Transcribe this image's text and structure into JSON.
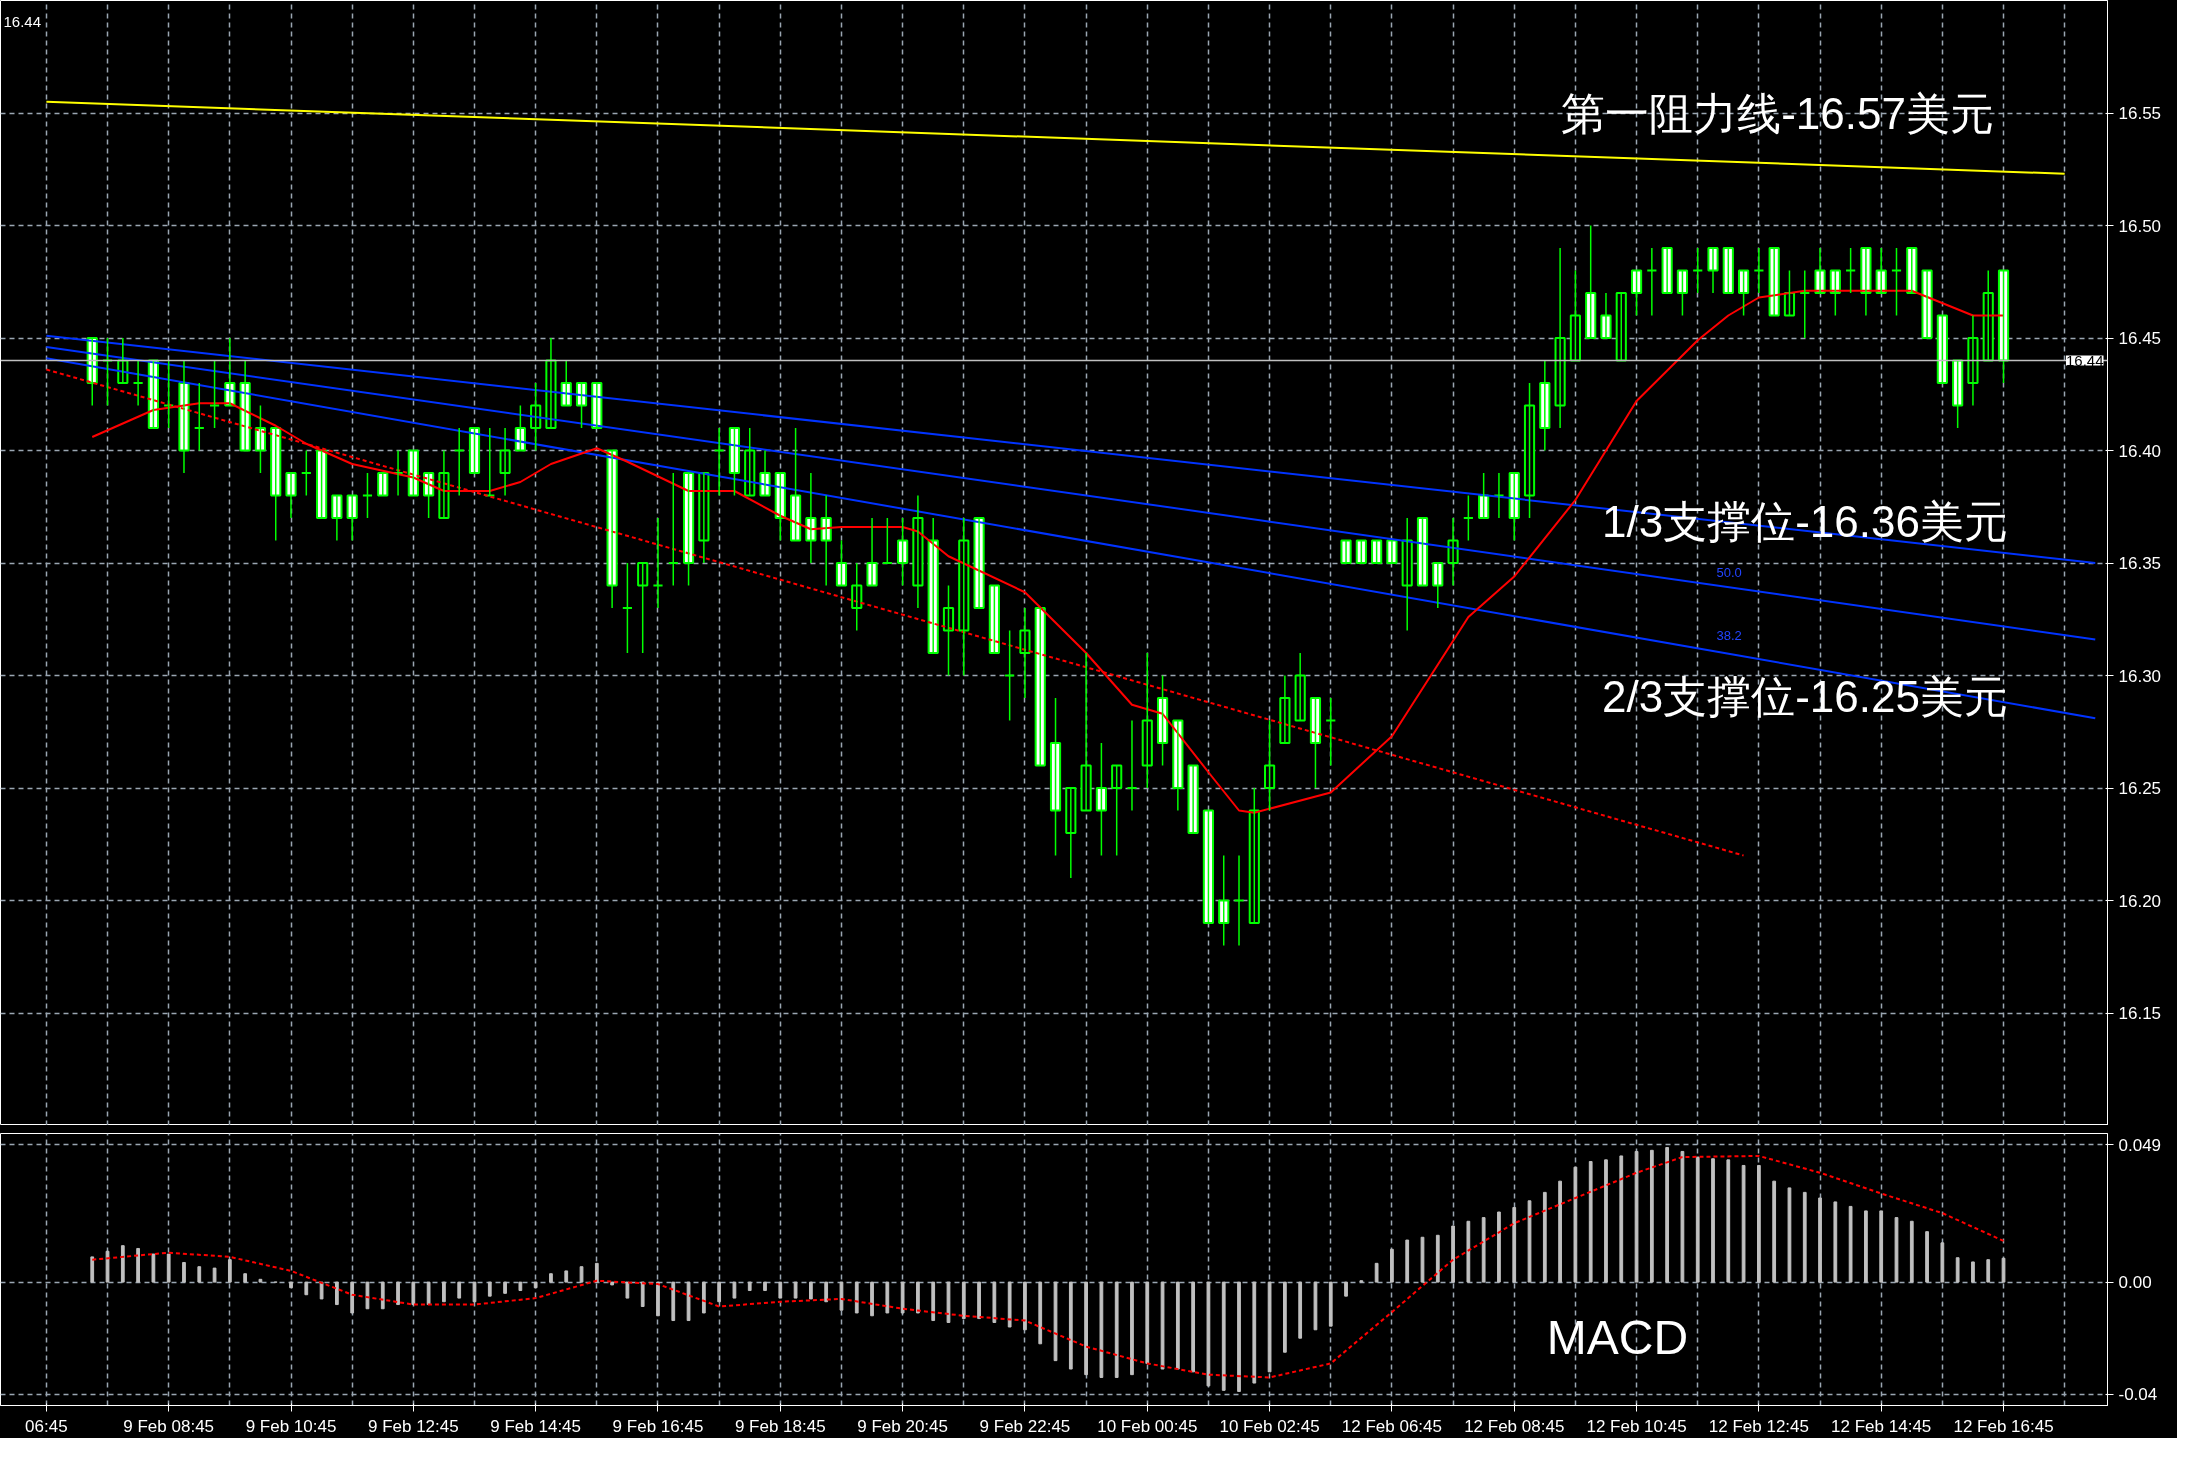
{
  "chart_data": [
    {
      "type": "candlestick",
      "color": "#00ff00",
      "categories": [
        "06:45",
        null,
        null,
        null,
        null,
        null,
        null,
        null,
        "9 Feb 08:45",
        null,
        null,
        null,
        null,
        null,
        null,
        null,
        "9 Feb 10:45",
        null,
        null,
        null,
        null,
        null,
        null,
        null,
        "9 Feb 12:45",
        null,
        null,
        null,
        null,
        null,
        null,
        null,
        "9 Feb 14:45",
        null,
        null,
        null,
        null,
        null,
        null,
        null,
        "9 Feb 16:45",
        null,
        null,
        null,
        null,
        null,
        null,
        null,
        "9 Feb 18:45",
        null,
        null,
        null,
        null,
        null,
        null,
        null,
        "9 Feb 20:45",
        null,
        null,
        null,
        null,
        null,
        null,
        null,
        "9 Feb 22:45",
        null,
        null,
        null,
        null,
        null,
        null,
        null,
        "10 Feb 00:45",
        null,
        null,
        null,
        null,
        null,
        null,
        null,
        "10 Feb 02:45",
        null,
        null,
        null,
        null,
        null,
        null,
        null,
        "12 Feb 06:45",
        null,
        null,
        null,
        null,
        null,
        null,
        null,
        "12 Feb 08:45",
        null,
        null,
        null,
        null,
        null,
        null,
        null,
        "12 Feb 10:45",
        null,
        null,
        null,
        null,
        null,
        null,
        null,
        "12 Feb 12:45",
        null,
        null,
        null,
        null,
        null,
        null,
        null,
        "12 Feb 14:45",
        null,
        null,
        null,
        null,
        null,
        null,
        null,
        "12 Feb 16:45",
        null,
        null,
        null,
        null,
        null,
        null
      ],
      "ohlc": [
        null,
        null,
        null,
        [
          16.45,
          16.45,
          16.42,
          16.43
        ],
        [
          16.44,
          16.45,
          16.42,
          16.44
        ],
        [
          16.43,
          16.45,
          16.43,
          16.44
        ],
        [
          16.43,
          16.44,
          16.42,
          16.43
        ],
        [
          16.44,
          16.44,
          16.41,
          16.41
        ],
        [
          16.42,
          16.44,
          16.41,
          16.42
        ],
        [
          16.43,
          16.44,
          16.39,
          16.4
        ],
        [
          16.41,
          16.43,
          16.4,
          16.41
        ],
        [
          16.42,
          16.44,
          16.41,
          16.42
        ],
        [
          16.43,
          16.45,
          16.42,
          16.42
        ],
        [
          16.43,
          16.44,
          16.4,
          16.4
        ],
        [
          16.41,
          16.42,
          16.39,
          16.4
        ],
        [
          16.41,
          16.41,
          16.36,
          16.38
        ],
        [
          16.39,
          16.39,
          16.37,
          16.38
        ],
        [
          16.39,
          16.4,
          16.38,
          16.39
        ],
        [
          16.4,
          16.4,
          16.37,
          16.37
        ],
        [
          16.38,
          16.38,
          16.36,
          16.37
        ],
        [
          16.38,
          16.38,
          16.36,
          16.37
        ],
        [
          16.38,
          16.39,
          16.37,
          16.38
        ],
        [
          16.39,
          16.39,
          16.38,
          16.38
        ],
        [
          16.39,
          16.4,
          16.38,
          16.39
        ],
        [
          16.4,
          16.4,
          16.38,
          16.38
        ],
        [
          16.39,
          16.39,
          16.37,
          16.38
        ],
        [
          16.37,
          16.4,
          16.37,
          16.39
        ],
        [
          16.4,
          16.41,
          16.38,
          16.4
        ],
        [
          16.41,
          16.41,
          16.39,
          16.39
        ],
        [
          16.38,
          16.41,
          16.38,
          16.38
        ],
        [
          16.39,
          16.41,
          16.38,
          16.4
        ],
        [
          16.41,
          16.42,
          16.4,
          16.4
        ],
        [
          16.41,
          16.43,
          16.4,
          16.42
        ],
        [
          16.41,
          16.45,
          16.41,
          16.44
        ],
        [
          16.43,
          16.44,
          16.42,
          16.42
        ],
        [
          16.43,
          16.43,
          16.41,
          16.42
        ],
        [
          16.43,
          16.43,
          16.41,
          16.41
        ],
        [
          16.4,
          16.4,
          16.33,
          16.34
        ],
        [
          16.33,
          16.35,
          16.31,
          16.33
        ],
        [
          16.34,
          16.35,
          16.31,
          16.35
        ],
        [
          16.34,
          16.37,
          16.33,
          16.34
        ],
        [
          16.35,
          16.39,
          16.34,
          16.35
        ],
        [
          16.39,
          16.39,
          16.34,
          16.35
        ],
        [
          16.36,
          16.39,
          16.35,
          16.39
        ],
        [
          16.4,
          16.41,
          16.38,
          16.4
        ],
        [
          16.41,
          16.41,
          16.38,
          16.39
        ],
        [
          16.38,
          16.41,
          16.38,
          16.4
        ],
        [
          16.39,
          16.4,
          16.38,
          16.38
        ],
        [
          16.39,
          16.39,
          16.36,
          16.37
        ],
        [
          16.38,
          16.41,
          16.36,
          16.36
        ],
        [
          16.37,
          16.39,
          16.35,
          16.36
        ],
        [
          16.37,
          16.38,
          16.34,
          16.36
        ],
        [
          16.35,
          16.36,
          16.34,
          16.34
        ],
        [
          16.33,
          16.35,
          16.32,
          16.34
        ],
        [
          16.35,
          16.37,
          16.34,
          16.34
        ],
        [
          16.35,
          16.37,
          16.35,
          16.35
        ],
        [
          16.36,
          16.37,
          16.34,
          16.35
        ],
        [
          16.34,
          16.38,
          16.33,
          16.37
        ],
        [
          16.36,
          16.37,
          16.31,
          16.31
        ],
        [
          16.32,
          16.34,
          16.3,
          16.33
        ],
        [
          16.32,
          16.37,
          16.3,
          16.36
        ],
        [
          16.37,
          16.37,
          16.33,
          16.33
        ],
        [
          16.34,
          16.34,
          16.31,
          16.31
        ],
        [
          16.3,
          16.32,
          16.28,
          16.3
        ],
        [
          16.31,
          16.33,
          16.29,
          16.32
        ],
        [
          16.33,
          16.33,
          16.26,
          16.26
        ],
        [
          16.27,
          16.29,
          16.22,
          16.24
        ],
        [
          16.23,
          16.25,
          16.21,
          16.25
        ],
        [
          16.24,
          16.31,
          16.24,
          16.26
        ],
        [
          16.25,
          16.27,
          16.22,
          16.24
        ],
        [
          16.25,
          16.26,
          16.22,
          16.26
        ],
        [
          16.25,
          16.28,
          16.24,
          16.25
        ],
        [
          16.26,
          16.31,
          16.25,
          16.28
        ],
        [
          16.29,
          16.3,
          16.26,
          16.27
        ],
        [
          16.28,
          16.28,
          16.24,
          16.25
        ],
        [
          16.26,
          16.26,
          16.23,
          16.23
        ],
        [
          16.24,
          16.24,
          16.19,
          16.19
        ],
        [
          16.2,
          16.22,
          16.18,
          16.19
        ],
        [
          16.2,
          16.22,
          16.18,
          16.2
        ],
        [
          16.19,
          16.25,
          16.19,
          16.24
        ],
        [
          16.25,
          16.28,
          16.24,
          16.26
        ],
        [
          16.27,
          16.3,
          16.27,
          16.29
        ],
        [
          16.28,
          16.31,
          16.28,
          16.3
        ],
        [
          16.29,
          16.29,
          16.25,
          16.27
        ],
        [
          16.28,
          16.29,
          16.26,
          16.28
        ],
        [
          16.36,
          16.36,
          16.35,
          16.35
        ],
        [
          16.36,
          16.36,
          16.35,
          16.35
        ],
        [
          16.36,
          16.36,
          16.35,
          16.35
        ],
        [
          16.36,
          16.36,
          16.35,
          16.35
        ],
        [
          16.34,
          16.37,
          16.32,
          16.36
        ],
        [
          16.37,
          16.37,
          16.34,
          16.34
        ],
        [
          16.35,
          16.35,
          16.33,
          16.34
        ],
        [
          16.35,
          16.37,
          16.34,
          16.36
        ],
        [
          16.37,
          16.38,
          16.36,
          16.37
        ],
        [
          16.38,
          16.39,
          16.37,
          16.37
        ],
        [
          16.38,
          16.39,
          16.37,
          16.38
        ],
        [
          16.39,
          16.39,
          16.36,
          16.37
        ],
        [
          16.38,
          16.43,
          16.37,
          16.42
        ],
        [
          16.43,
          16.44,
          16.4,
          16.41
        ],
        [
          16.42,
          16.49,
          16.41,
          16.45
        ],
        [
          16.44,
          16.48,
          16.44,
          16.46
        ],
        [
          16.47,
          16.5,
          16.45,
          16.45
        ],
        [
          16.46,
          16.47,
          16.45,
          16.45
        ],
        [
          16.44,
          16.47,
          16.44,
          16.47
        ],
        [
          16.48,
          16.48,
          16.46,
          16.47
        ],
        [
          16.48,
          16.49,
          16.46,
          16.48
        ],
        [
          16.49,
          16.49,
          16.47,
          16.47
        ],
        [
          16.48,
          16.48,
          16.46,
          16.47
        ],
        [
          16.48,
          16.49,
          16.47,
          16.48
        ],
        [
          16.49,
          16.49,
          16.47,
          16.48
        ],
        [
          16.49,
          16.49,
          16.47,
          16.47
        ],
        [
          16.48,
          16.48,
          16.46,
          16.47
        ],
        [
          16.48,
          16.49,
          16.47,
          16.48
        ],
        [
          16.49,
          16.49,
          16.46,
          16.46
        ],
        [
          16.46,
          16.48,
          16.46,
          16.47
        ],
        [
          16.47,
          16.48,
          16.45,
          16.47
        ],
        [
          16.48,
          16.49,
          16.47,
          16.47
        ],
        [
          16.48,
          16.48,
          16.46,
          16.47
        ],
        [
          16.48,
          16.49,
          16.47,
          16.48
        ],
        [
          16.49,
          16.49,
          16.46,
          16.47
        ],
        [
          16.48,
          16.49,
          16.47,
          16.47
        ],
        [
          16.48,
          16.49,
          16.46,
          16.48
        ],
        [
          16.49,
          16.49,
          16.47,
          16.47
        ],
        [
          16.48,
          16.48,
          16.45,
          16.45
        ],
        [
          16.46,
          16.46,
          16.43,
          16.43
        ],
        [
          16.44,
          16.44,
          16.41,
          16.42
        ],
        [
          16.43,
          16.46,
          16.42,
          16.45
        ],
        [
          16.44,
          16.48,
          16.44,
          16.47
        ],
        [
          16.48,
          16.48,
          16.43,
          16.44
        ],
        null,
        null,
        null,
        null,
        null,
        null
      ],
      "series": [
        {
          "type": "line",
          "color": "#ffff00",
          "values": [
            16.555,
            null,
            null,
            null,
            null,
            null,
            null,
            null,
            null,
            null,
            null,
            null,
            null,
            null,
            null,
            null,
            null,
            null,
            null,
            null,
            null,
            null,
            null,
            null,
            null,
            null,
            null,
            null,
            null,
            null,
            null,
            null,
            null,
            null,
            null,
            null,
            null,
            null,
            null,
            null,
            null,
            null,
            null,
            null,
            null,
            null,
            null,
            null,
            null,
            null,
            null,
            null,
            null,
            null,
            null,
            null,
            null,
            null,
            null,
            null,
            null,
            null,
            null,
            null,
            null,
            null,
            null,
            null,
            null,
            null,
            null,
            null,
            null,
            null,
            null,
            null,
            null,
            null,
            null,
            null,
            null,
            null,
            null,
            null,
            null,
            null,
            null,
            null,
            null,
            null,
            null,
            null,
            null,
            null,
            null,
            null,
            null,
            null,
            null,
            null,
            null,
            null,
            null,
            null,
            null,
            null,
            null,
            null,
            null,
            null,
            null,
            null,
            null,
            null,
            null,
            null,
            null,
            null,
            null,
            null,
            null,
            null,
            null,
            null,
            null,
            null,
            null,
            null,
            null,
            null,
            null,
            null,
            16.523,
            null,
            null
          ]
        },
        {
          "type": "line",
          "color": "#0033ff",
          "values": [
            16.451,
            null,
            null,
            null,
            null,
            null,
            null,
            null,
            null,
            null,
            null,
            null,
            null,
            null,
            null,
            null,
            null,
            null,
            null,
            null,
            null,
            null,
            null,
            null,
            null,
            null,
            null,
            null,
            null,
            null,
            null,
            null,
            null,
            null,
            null,
            null,
            null,
            null,
            null,
            null,
            null,
            null,
            null,
            null,
            null,
            null,
            null,
            null,
            null,
            null,
            null,
            null,
            null,
            null,
            null,
            null,
            null,
            null,
            null,
            null,
            null,
            null,
            null,
            null,
            null,
            null,
            null,
            null,
            null,
            null,
            null,
            null,
            null,
            null,
            null,
            null,
            null,
            null,
            null,
            null,
            null,
            null,
            null,
            null,
            null,
            null,
            null,
            null,
            null,
            null,
            null,
            null,
            null,
            null,
            null,
            null,
            null,
            null,
            null,
            null,
            null,
            null,
            null,
            null,
            null,
            null,
            null,
            null,
            null,
            null,
            null,
            null,
            null,
            null,
            null,
            null,
            null,
            null,
            null,
            null,
            null,
            null,
            null,
            null,
            null,
            null,
            null,
            null,
            null,
            null,
            null,
            null,
            null,
            null,
            16.35
          ]
        },
        {
          "type": "line",
          "color": "#0033ff",
          "values": [
            16.446,
            null,
            null,
            null,
            null,
            null,
            null,
            null,
            null,
            null,
            null,
            null,
            null,
            null,
            null,
            null,
            null,
            null,
            null,
            null,
            null,
            null,
            null,
            null,
            null,
            null,
            null,
            null,
            null,
            null,
            null,
            null,
            null,
            null,
            null,
            null,
            null,
            null,
            null,
            null,
            null,
            null,
            null,
            null,
            null,
            null,
            null,
            null,
            null,
            null,
            null,
            null,
            null,
            null,
            null,
            null,
            null,
            null,
            null,
            null,
            null,
            null,
            null,
            null,
            null,
            null,
            null,
            null,
            null,
            null,
            null,
            null,
            null,
            null,
            null,
            null,
            null,
            null,
            null,
            null,
            null,
            null,
            null,
            null,
            null,
            null,
            null,
            null,
            null,
            null,
            null,
            null,
            null,
            null,
            null,
            null,
            null,
            null,
            null,
            null,
            null,
            null,
            null,
            null,
            null,
            null,
            null,
            null,
            null,
            null,
            null,
            null,
            null,
            null,
            null,
            null,
            null,
            null,
            null,
            null,
            null,
            null,
            null,
            null,
            null,
            null,
            null,
            null,
            null,
            null,
            null,
            null,
            null,
            null,
            16.316
          ]
        },
        {
          "type": "line",
          "color": "#0033ff",
          "values": [
            16.441,
            null,
            null,
            null,
            null,
            null,
            null,
            null,
            null,
            null,
            null,
            null,
            null,
            null,
            null,
            null,
            null,
            null,
            null,
            null,
            null,
            null,
            null,
            null,
            null,
            null,
            null,
            null,
            null,
            null,
            null,
            null,
            null,
            null,
            null,
            null,
            null,
            null,
            null,
            null,
            null,
            null,
            null,
            null,
            null,
            null,
            null,
            null,
            null,
            null,
            null,
            null,
            null,
            null,
            null,
            null,
            null,
            null,
            null,
            null,
            null,
            null,
            null,
            null,
            null,
            null,
            null,
            null,
            null,
            null,
            null,
            null,
            null,
            null,
            null,
            null,
            null,
            null,
            null,
            null,
            null,
            null,
            null,
            null,
            null,
            null,
            null,
            null,
            null,
            null,
            null,
            null,
            null,
            null,
            null,
            null,
            null,
            null,
            null,
            null,
            null,
            null,
            null,
            null,
            null,
            null,
            null,
            null,
            null,
            null,
            null,
            null,
            null,
            null,
            null,
            null,
            null,
            null,
            null,
            null,
            null,
            null,
            null,
            null,
            null,
            null,
            null,
            null,
            null,
            null,
            null,
            null,
            null,
            null,
            16.281
          ]
        },
        {
          "type": "line",
          "color": "#ff0000",
          "line_style": "dashed",
          "values": [
            16.436,
            null,
            null,
            null,
            null,
            null,
            null,
            null,
            null,
            null,
            null,
            null,
            null,
            null,
            null,
            null,
            null,
            null,
            null,
            null,
            null,
            null,
            null,
            null,
            null,
            null,
            null,
            null,
            null,
            null,
            null,
            null,
            null,
            null,
            null,
            null,
            null,
            null,
            null,
            null,
            null,
            null,
            null,
            null,
            null,
            null,
            null,
            null,
            null,
            null,
            null,
            null,
            null,
            null,
            null,
            null,
            null,
            null,
            null,
            null,
            null,
            null,
            null,
            null,
            null,
            null,
            null,
            null,
            null,
            null,
            null,
            null,
            null,
            null,
            null,
            null,
            null,
            null,
            null,
            null,
            null,
            null,
            null,
            null,
            null,
            null,
            null,
            null,
            null,
            null,
            null,
            null,
            null,
            null,
            null,
            null,
            null,
            null,
            null,
            null,
            null,
            null,
            null,
            null,
            null,
            null,
            null,
            null,
            null,
            null,
            null,
            16.22,
            null,
            null,
            null,
            null,
            null,
            null,
            null,
            null,
            null,
            null,
            null,
            null,
            null,
            null,
            null,
            null,
            null,
            null,
            null,
            null,
            null,
            null,
            null
          ]
        },
        {
          "type": "line",
          "color": "#ff0000",
          "values": [
            null,
            null,
            null,
            16.406,
            null,
            null,
            null,
            16.418,
            null,
            null,
            16.421,
            null,
            16.421,
            null,
            null,
            16.411,
            null,
            16.403,
            null,
            null,
            16.394,
            null,
            null,
            null,
            16.388,
            null,
            16.382,
            null,
            null,
            16.382,
            null,
            16.386,
            null,
            16.394,
            null,
            null,
            16.401,
            null,
            16.395,
            null,
            null,
            null,
            16.382,
            null,
            null,
            16.382,
            null,
            null,
            16.371,
            null,
            16.365,
            null,
            16.366,
            null,
            null,
            null,
            16.366,
            16.364,
            null,
            16.353,
            null,
            null,
            null,
            null,
            16.337,
            null,
            null,
            null,
            16.31,
            null,
            null,
            16.287,
            null,
            16.283,
            null,
            null,
            16.257,
            null,
            16.24,
            16.239,
            null,
            null,
            null,
            null,
            16.248,
            null,
            null,
            null,
            16.273,
            null,
            null,
            null,
            null,
            16.326,
            null,
            null,
            16.344,
            null,
            null,
            null,
            16.378,
            null,
            null,
            null,
            16.422,
            null,
            null,
            null,
            16.449,
            null,
            16.46,
            null,
            16.468,
            null,
            null,
            16.471,
            null,
            null,
            null,
            null,
            null,
            null,
            16.471,
            null,
            null,
            null,
            16.46,
            null,
            16.46,
            null,
            null,
            null,
            null,
            null,
            null
          ]
        }
      ],
      "ylim": [
        16.1,
        16.6
      ],
      "yticks": [
        16.15,
        {
          "value": 16.2,
          "label": "16.20"
        },
        16.25,
        {
          "value": 16.3,
          "label": "16.30"
        },
        16.35,
        {
          "value": 16.4,
          "label": "16.40"
        },
        16.45,
        {
          "value": 16.5,
          "label": "16.50"
        },
        16.55
      ],
      "tick_labels": "y",
      "grid": true,
      "ref_lines": [
        {
          "axis": "y",
          "value": 16.44,
          "label": "16.44",
          "color": "#c0c0c0"
        }
      ],
      "annotations": [
        "第一阻力线-16.57美元",
        "1/3支撑位-16.36美元",
        "2/3支撑位-16.25美元",
        "50.0",
        "38.2",
        "16.44"
      ]
    },
    {
      "type": "bar",
      "color": "#c0c0c0",
      "categories": [
        "06:45",
        null,
        null,
        null,
        null,
        null,
        null,
        null,
        "9 Feb 08:45",
        null,
        null,
        null,
        null,
        null,
        null,
        null,
        "9 Feb 10:45",
        null,
        null,
        null,
        null,
        null,
        null,
        null,
        "9 Feb 12:45",
        null,
        null,
        null,
        null,
        null,
        null,
        null,
        "9 Feb 14:45",
        null,
        null,
        null,
        null,
        null,
        null,
        null,
        "9 Feb 16:45",
        null,
        null,
        null,
        null,
        null,
        null,
        null,
        "9 Feb 18:45",
        null,
        null,
        null,
        null,
        null,
        null,
        null,
        "9 Feb 20:45",
        null,
        null,
        null,
        null,
        null,
        null,
        null,
        "9 Feb 22:45",
        null,
        null,
        null,
        null,
        null,
        null,
        null,
        "10 Feb 00:45",
        null,
        null,
        null,
        null,
        null,
        null,
        null,
        "10 Feb 02:45",
        null,
        null,
        null,
        null,
        null,
        null,
        null,
        "12 Feb 06:45",
        null,
        null,
        null,
        null,
        null,
        null,
        null,
        "12 Feb 08:45",
        null,
        null,
        null,
        null,
        null,
        null,
        null,
        "12 Feb 10:45",
        null,
        null,
        null,
        null,
        null,
        null,
        null,
        "12 Feb 12:45",
        null,
        null,
        null,
        null,
        null,
        null,
        null,
        "12 Feb 14:45",
        null,
        null,
        null,
        null,
        null,
        null,
        null,
        "12 Feb 16:45",
        null,
        null,
        null,
        null,
        null,
        null
      ],
      "values": [
        null,
        null,
        null,
        0.009,
        0.011,
        0.013,
        0.012,
        0.01,
        0.01,
        0.007,
        0.0055,
        0.005,
        0.008,
        0.003,
        0.001,
        0,
        -0.002,
        -0.0045,
        -0.006,
        -0.008,
        -0.011,
        -0.0095,
        -0.0095,
        -0.008,
        -0.008,
        -0.008,
        -0.007,
        -0.0057,
        -0.007,
        -0.005,
        -0.004,
        -0.003,
        -0.002,
        0.003,
        0.004,
        0.0055,
        0.0067,
        -0.001,
        -0.0057,
        -0.0087,
        -0.012,
        -0.0137,
        -0.0137,
        -0.011,
        -0.007,
        -0.0057,
        -0.003,
        -0.003,
        -0.0057,
        -0.0057,
        -0.006,
        -0.007,
        -0.01,
        -0.011,
        -0.012,
        -0.011,
        -0.011,
        -0.011,
        -0.0137,
        -0.0144,
        -0.013,
        -0.013,
        -0.0144,
        -0.016,
        -0.017,
        -0.022,
        -0.028,
        -0.031,
        -0.033,
        -0.034,
        -0.034,
        -0.033,
        -0.029,
        -0.031,
        -0.031,
        -0.032,
        -0.037,
        -0.0386,
        -0.039,
        -0.036,
        -0.032,
        -0.025,
        -0.02,
        -0.017,
        -0.0157,
        -0.005,
        0.0005,
        0.0067,
        0.0117,
        0.015,
        0.016,
        0.0167,
        0.02,
        0.0217,
        0.023,
        0.025,
        0.0266,
        0.029,
        0.032,
        0.036,
        0.041,
        0.043,
        0.0436,
        0.045,
        0.0466,
        0.047,
        0.048,
        0.0466,
        0.0446,
        0.044,
        0.0436,
        0.0416,
        0.0416,
        0.036,
        0.0336,
        0.032,
        0.03,
        0.0286,
        0.027,
        0.0254,
        0.0254,
        0.023,
        0.0217,
        0.018,
        0.014,
        0.0087,
        0.0072,
        0.008,
        0.0085,
        null,
        null,
        null,
        null,
        null,
        null
      ],
      "series": [
        {
          "type": "line",
          "color": "#ff0000",
          "line_style": "dashed",
          "values": [
            null,
            null,
            null,
            0.008,
            null,
            null,
            null,
            null,
            0.0105,
            null,
            null,
            null,
            0.009,
            null,
            null,
            null,
            0.004,
            null,
            null,
            null,
            -0.0045,
            null,
            null,
            null,
            -0.008,
            null,
            null,
            null,
            -0.008,
            null,
            null,
            null,
            -0.0057,
            null,
            null,
            null,
            0.0005,
            null,
            null,
            null,
            -0.0007,
            null,
            null,
            null,
            -0.0087,
            null,
            null,
            null,
            -0.007,
            null,
            null,
            null,
            -0.006,
            null,
            null,
            null,
            -0.0095,
            null,
            null,
            null,
            -0.012,
            null,
            null,
            null,
            -0.0137,
            null,
            null,
            null,
            -0.023,
            null,
            null,
            null,
            -0.029,
            null,
            null,
            null,
            -0.033,
            null,
            null,
            null,
            -0.034,
            null,
            null,
            null,
            -0.029,
            null,
            null,
            null,
            -0.0107,
            null,
            null,
            null,
            0.008,
            null,
            null,
            null,
            0.021,
            null,
            null,
            null,
            0.03,
            null,
            null,
            null,
            0.039,
            null,
            null,
            0.0446,
            null,
            null,
            null,
            null,
            0.045,
            null,
            null,
            null,
            0.039,
            null,
            null,
            null,
            0.0316,
            null,
            null,
            null,
            0.0246,
            null,
            null,
            null,
            0.0147,
            null,
            null,
            null,
            null,
            null,
            null
          ]
        }
      ],
      "ylim": [
        -0.044,
        0.053
      ],
      "yticks": [
        {
          "value": -0.04,
          "label": "-0.04"
        },
        {
          "value": 0,
          "label": "0.00"
        },
        0.049
      ],
      "grid": true,
      "annotations": [
        "MACD"
      ]
    }
  ]
}
